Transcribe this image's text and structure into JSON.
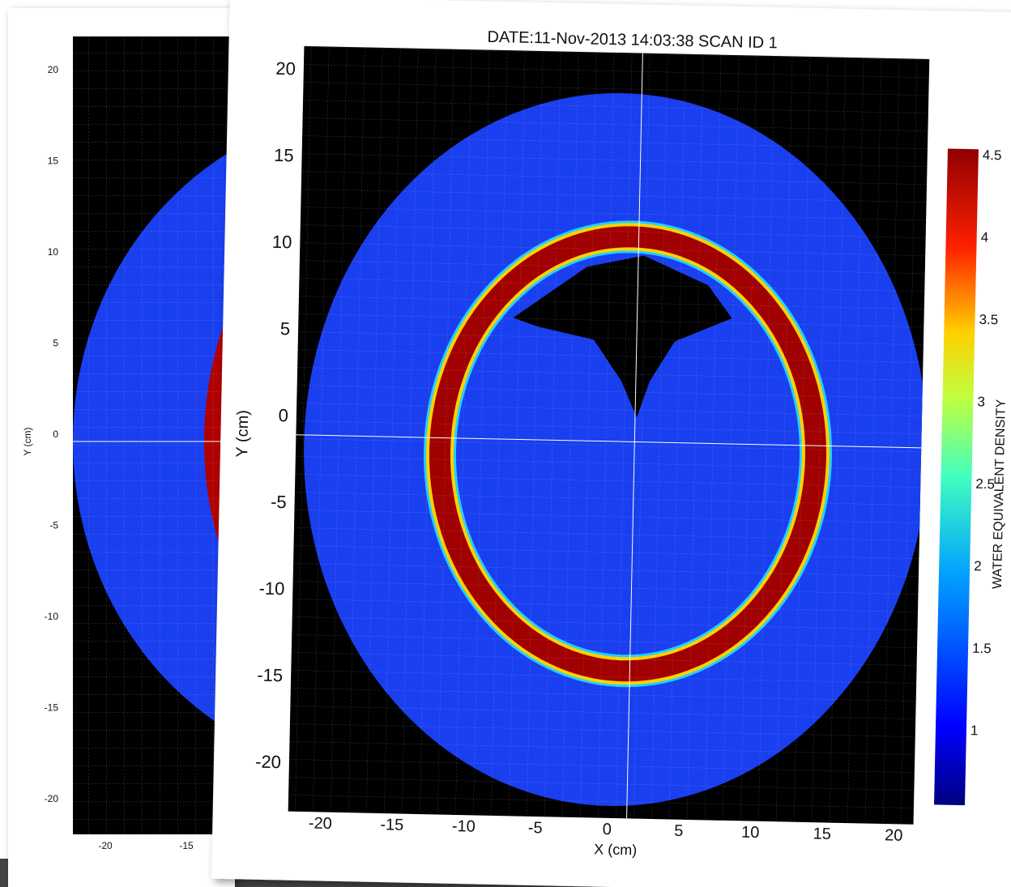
{
  "back": {
    "y_label": "Y (cm)",
    "y_ticks": [
      20,
      15,
      10,
      5,
      0,
      -5,
      -10,
      -15,
      -20
    ],
    "x_ticks": [
      -20,
      -15
    ]
  },
  "front": {
    "title": "DATE:11-Nov-2013 14:03:38 SCAN ID 1",
    "x_label": "X (cm)",
    "y_label": "Y (cm)",
    "x_ticks": [
      -20,
      -15,
      -10,
      -5,
      0,
      5,
      10,
      15,
      20
    ],
    "y_ticks": [
      20,
      15,
      10,
      5,
      0,
      -5,
      -10,
      -15,
      -20
    ],
    "colorbar_ticks": [
      4.5,
      4,
      3.5,
      3,
      2.5,
      2,
      1.5,
      1
    ],
    "colorbar_label": "WATER EQUIVALENT DENSITY"
  }
}
